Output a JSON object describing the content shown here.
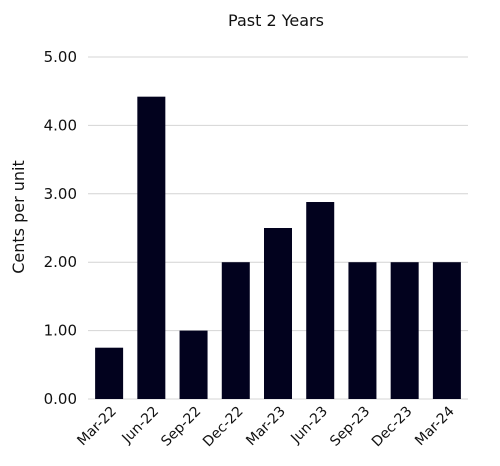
{
  "chart_data": {
    "type": "bar",
    "title": "Past 2 Years",
    "xlabel": "",
    "ylabel": "Cents per unit",
    "categories": [
      "Mar-22",
      "Jun-22",
      "Sep-22",
      "Dec-22",
      "Mar-23",
      "Jun-23",
      "Sep-23",
      "Dec-23",
      "Mar-24"
    ],
    "values": [
      0.75,
      4.42,
      1.0,
      2.0,
      2.5,
      2.88,
      2.0,
      2.0,
      2.0
    ],
    "yticks": [
      "0.00",
      "1.00",
      "2.00",
      "3.00",
      "4.00",
      "5.00"
    ],
    "ylim": [
      0,
      5
    ],
    "grid": true,
    "bar_color": "#02021e",
    "grid_color": "#d4d4d4"
  }
}
